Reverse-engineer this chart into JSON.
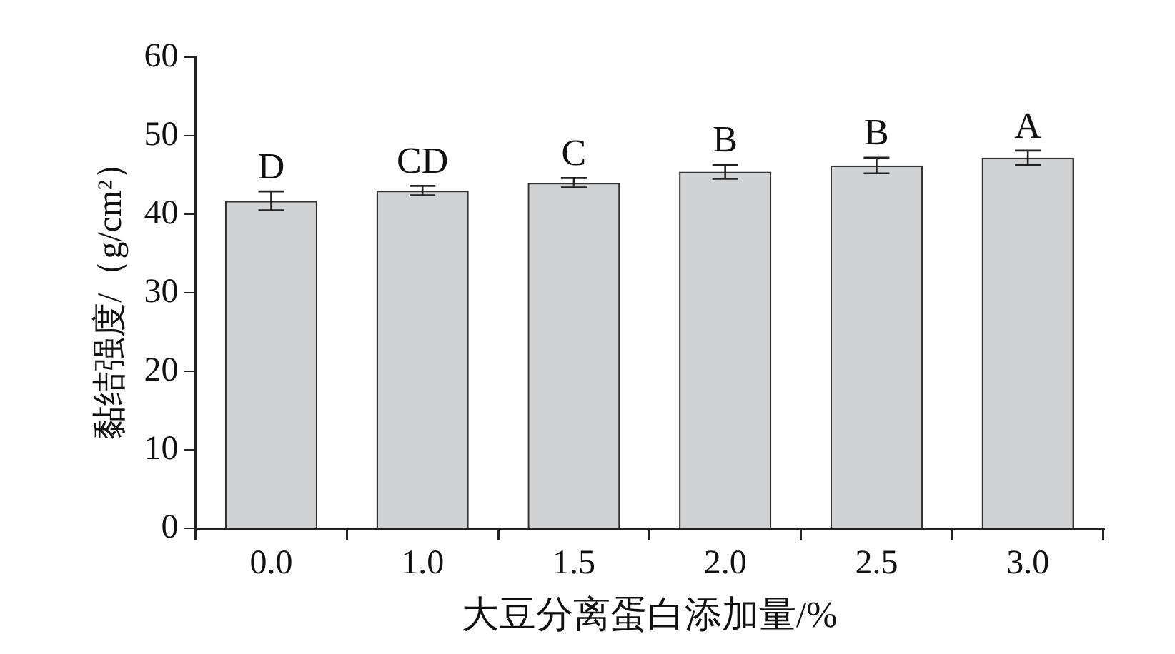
{
  "chart_data": {
    "type": "bar",
    "xlabel": "大豆分离蛋白添加量/%",
    "ylabel": "黏结强度/（g/cm²）",
    "categories": [
      "0.0",
      "1.0",
      "1.5",
      "2.0",
      "2.5",
      "3.0"
    ],
    "values": [
      41.7,
      43.0,
      44.0,
      45.4,
      46.2,
      47.2
    ],
    "errors": [
      1.2,
      0.6,
      0.6,
      0.9,
      1.0,
      0.9
    ],
    "color": "#d1d2d4",
    "ylim": [
      0,
      60
    ],
    "yticks": [
      0,
      10,
      20,
      30,
      40,
      50,
      60
    ],
    "grid": false,
    "legend": false,
    "annotations": [
      {
        "text": "D",
        "x": "0.0",
        "y": 42.9
      },
      {
        "text": "CD",
        "x": "1.0",
        "y": 43.6
      },
      {
        "text": "C",
        "x": "1.5",
        "y": 44.6
      },
      {
        "text": "B",
        "x": "2.0",
        "y": 46.3
      },
      {
        "text": "B",
        "x": "2.5",
        "y": 47.2
      },
      {
        "text": "A",
        "x": "3.0",
        "y": 48.1
      }
    ]
  }
}
